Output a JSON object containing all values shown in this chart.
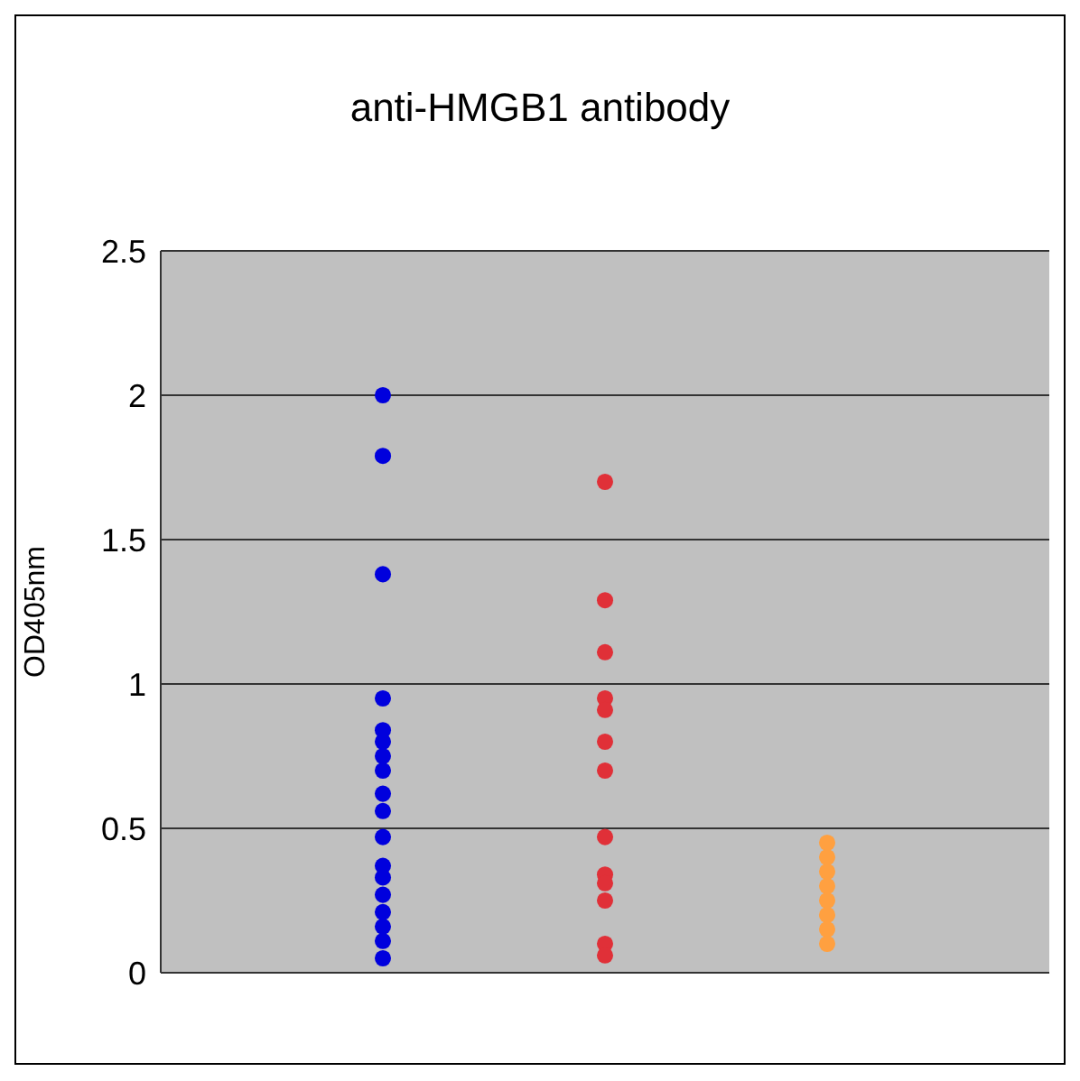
{
  "chart_data": {
    "type": "scatter",
    "title": "anti-HMGB1 antibody",
    "ylabel": "OD405nm",
    "categories": [
      null,
      null,
      null
    ],
    "series": [
      {
        "colors": [
          "#0000dd",
          "#e03038",
          "#ffa040"
        ],
        "values": [
          2.0,
          1.7,
          0.45
        ]
      },
      {
        "colors": [
          "#0000dd",
          "#e03038",
          "#ffa040"
        ],
        "values": [
          1.79,
          1.29,
          0.4
        ]
      },
      {
        "colors": [
          "#0000dd",
          "#e03038",
          "#ffa040"
        ],
        "values": [
          1.38,
          1.11,
          0.35
        ]
      },
      {
        "colors": [
          "#0000dd",
          "#e03038",
          "#ffa040"
        ],
        "values": [
          0.95,
          0.95,
          0.3
        ]
      },
      {
        "colors": [
          "#0000dd",
          "#e03038",
          "#ffa040"
        ],
        "values": [
          0.84,
          0.91,
          0.25
        ]
      },
      {
        "colors": [
          "#0000dd",
          "#e03038",
          "#ffa040"
        ],
        "values": [
          0.8,
          0.8,
          0.2
        ]
      },
      {
        "colors": [
          "#0000dd",
          "#e03038",
          "#ffa040"
        ],
        "values": [
          0.75,
          0.7,
          0.15
        ]
      },
      {
        "colors": [
          "#0000dd",
          "#e03038",
          "#ffa040"
        ],
        "values": [
          0.7,
          0.47,
          0.1
        ]
      },
      {
        "colors": [
          "#0000dd",
          "#e03038",
          "#ffa040"
        ],
        "values": [
          0.62,
          0.34,
          null
        ]
      },
      {
        "colors": [
          "#0000dd",
          "#e03038",
          "#ffa040"
        ],
        "values": [
          0.56,
          0.31,
          null
        ]
      },
      {
        "colors": [
          "#0000dd",
          "#e03038",
          "#ffa040"
        ],
        "values": [
          0.47,
          0.25,
          null
        ]
      },
      {
        "colors": [
          "#0000dd",
          "#e03038",
          "#ffa040"
        ],
        "values": [
          0.37,
          0.1,
          null
        ]
      },
      {
        "colors": [
          "#0000dd",
          "#e03038",
          "#ffa040"
        ],
        "values": [
          0.33,
          0.06,
          null
        ]
      },
      {
        "colors": [
          "#0000dd",
          "#e03038",
          "#ffa040"
        ],
        "values": [
          0.27,
          null,
          null
        ]
      },
      {
        "colors": [
          "#0000dd",
          "#e03038",
          "#ffa040"
        ],
        "values": [
          0.21,
          null,
          null
        ]
      },
      {
        "colors": [
          "#0000dd",
          "#e03038",
          "#ffa040"
        ],
        "values": [
          0.16,
          null,
          null
        ]
      },
      {
        "colors": [
          "#0000dd",
          "#e03038",
          "#ffa040"
        ],
        "values": [
          0.11,
          null,
          null
        ]
      },
      {
        "colors": [
          "#0000dd",
          "#e03038",
          "#ffa040"
        ],
        "values": [
          0.05,
          null,
          null
        ]
      }
    ],
    "ylim": [
      0,
      2.5
    ],
    "yticks": [
      0,
      0.5,
      1,
      1.5,
      2,
      2.5
    ],
    "grid": "y",
    "legend": false,
    "marker": "circle"
  }
}
